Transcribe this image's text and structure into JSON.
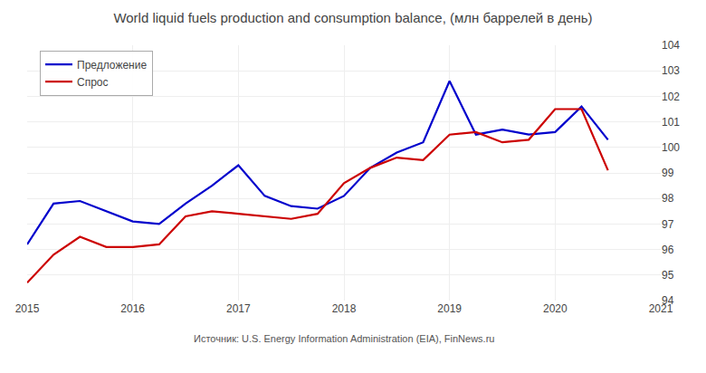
{
  "chart_data": {
    "type": "line",
    "title": "World liquid fuels production and consumption balance, (млн баррелей в день)",
    "annotations": [
      "Источник: U.S. Energy Information Administration (EIA), FinNews.ru"
    ],
    "x": [
      2015.0,
      2015.25,
      2015.5,
      2015.75,
      2016.0,
      2016.25,
      2016.5,
      2016.75,
      2017.0,
      2017.25,
      2017.5,
      2017.75,
      2018.0,
      2018.25,
      2018.5,
      2018.75,
      2019.0,
      2019.25,
      2019.5,
      2019.75,
      2020.0,
      2020.25,
      2020.5
    ],
    "series": [
      {
        "name": "Предложение",
        "color": "#0000cc",
        "values": [
          96.2,
          97.8,
          97.9,
          97.5,
          97.1,
          97.0,
          97.8,
          98.5,
          99.3,
          98.1,
          97.7,
          97.6,
          98.1,
          99.2,
          99.8,
          100.2,
          102.6,
          100.5,
          100.7,
          100.5,
          100.6,
          101.6,
          100.3
        ]
      },
      {
        "name": "Спрос",
        "color": "#cc0000",
        "values": [
          94.7,
          95.8,
          96.5,
          96.1,
          96.1,
          96.2,
          97.3,
          97.5,
          97.4,
          97.3,
          97.2,
          97.4,
          98.6,
          99.2,
          99.6,
          99.5,
          100.5,
          100.6,
          100.2,
          100.3,
          101.5,
          101.5,
          99.1
        ]
      }
    ],
    "xlim": [
      2015,
      2021
    ],
    "xticks": [
      2015,
      2016,
      2017,
      2018,
      2019,
      2020,
      2021
    ],
    "ylim": [
      94,
      104
    ],
    "yticks": [
      94,
      95,
      96,
      97,
      98,
      99,
      100,
      101,
      102,
      103,
      104
    ],
    "grid": true,
    "legend": "upper left"
  }
}
